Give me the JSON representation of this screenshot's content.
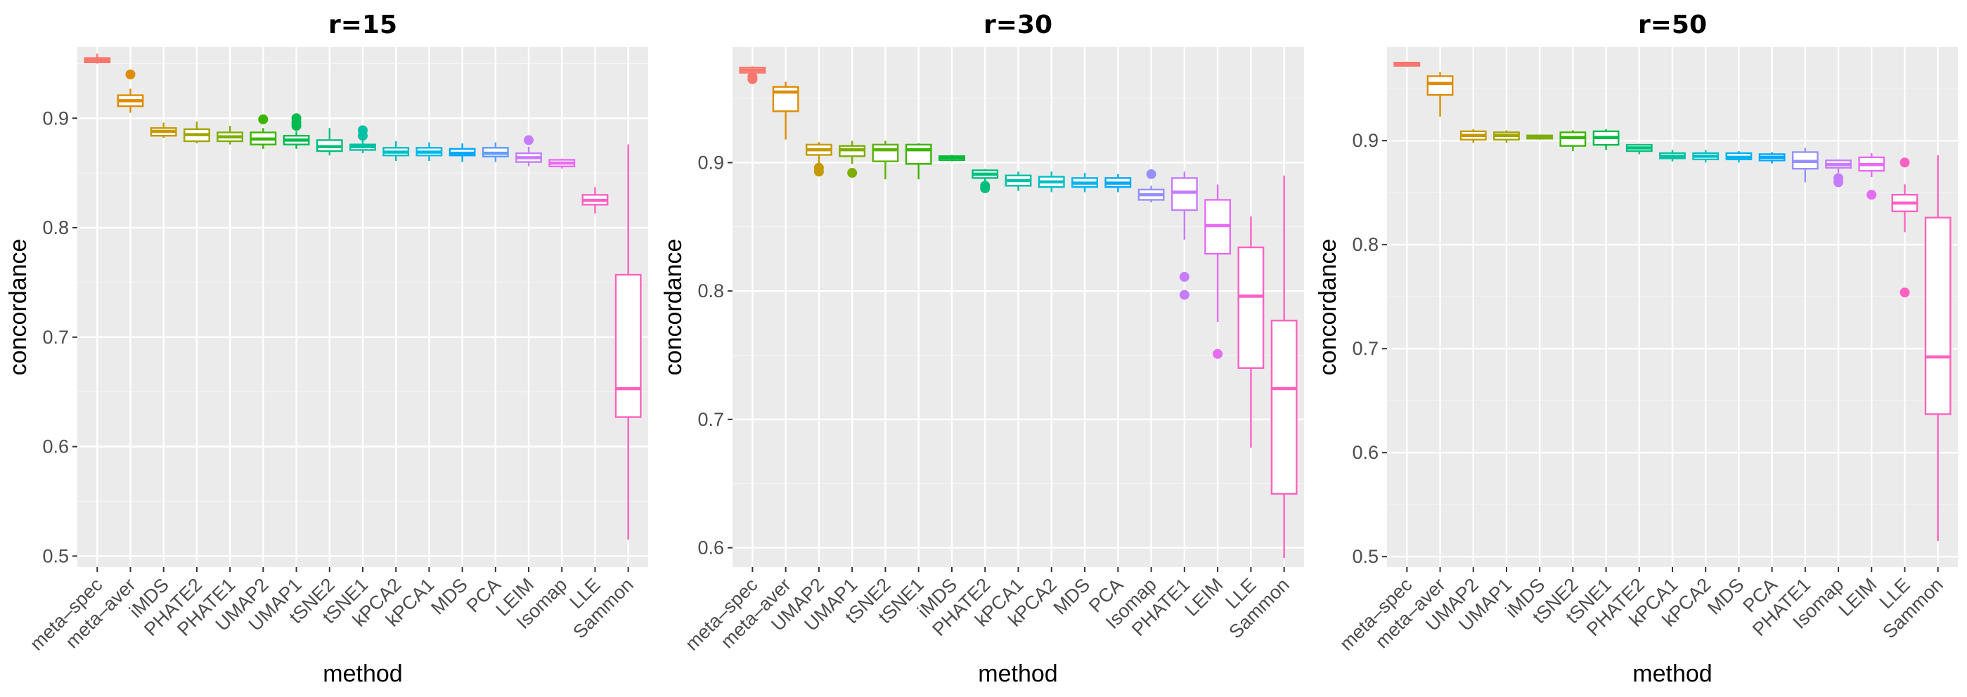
{
  "chart_data": [
    {
      "type": "box",
      "title": "r=15",
      "xlabel": "method",
      "ylabel": "concordance",
      "ylim": [
        0.49,
        0.965
      ],
      "yticks": [
        0.5,
        0.6,
        0.7,
        0.8,
        0.9
      ],
      "ytick_labels": [
        "0.5",
        "0.6",
        "0.7",
        "0.8",
        "0.9"
      ],
      "grid": true,
      "series": [
        {
          "name": "meta–spec",
          "color": "#F8766D",
          "q1": 0.951,
          "median": 0.953,
          "q3": 0.955,
          "wlo": 0.95,
          "whi": 0.959,
          "outliers": []
        },
        {
          "name": "meta–aver",
          "color": "#DE8C00",
          "q1": 0.911,
          "median": 0.916,
          "q3": 0.921,
          "wlo": 0.905,
          "whi": 0.927,
          "outliers": [
            0.94
          ]
        },
        {
          "name": "iMDS",
          "color": "#C59900",
          "q1": 0.884,
          "median": 0.888,
          "q3": 0.891,
          "wlo": 0.882,
          "whi": 0.896,
          "outliers": []
        },
        {
          "name": "PHATE2",
          "color": "#A3A500",
          "q1": 0.879,
          "median": 0.885,
          "q3": 0.89,
          "wlo": 0.877,
          "whi": 0.897,
          "outliers": []
        },
        {
          "name": "PHATE1",
          "color": "#7CAE00",
          "q1": 0.879,
          "median": 0.883,
          "q3": 0.887,
          "wlo": 0.876,
          "whi": 0.893,
          "outliers": []
        },
        {
          "name": "UMAP2",
          "color": "#39B600",
          "q1": 0.876,
          "median": 0.881,
          "q3": 0.887,
          "wlo": 0.872,
          "whi": 0.891,
          "outliers": [
            0.899
          ]
        },
        {
          "name": "UMAP1",
          "color": "#00BB4E",
          "q1": 0.876,
          "median": 0.88,
          "q3": 0.884,
          "wlo": 0.872,
          "whi": 0.888,
          "outliers": [
            0.893,
            0.896,
            0.9
          ]
        },
        {
          "name": "tSNE2",
          "color": "#00BF7D",
          "q1": 0.87,
          "median": 0.874,
          "q3": 0.88,
          "wlo": 0.866,
          "whi": 0.891,
          "outliers": []
        },
        {
          "name": "tSNE1",
          "color": "#00C1A3",
          "q1": 0.871,
          "median": 0.874,
          "q3": 0.876,
          "wlo": 0.868,
          "whi": 0.88,
          "outliers": [
            0.884,
            0.889
          ]
        },
        {
          "name": "kPCA2",
          "color": "#00BFC4",
          "q1": 0.866,
          "median": 0.869,
          "q3": 0.873,
          "wlo": 0.861,
          "whi": 0.879,
          "outliers": []
        },
        {
          "name": "kPCA1",
          "color": "#00B8E7",
          "q1": 0.866,
          "median": 0.869,
          "q3": 0.873,
          "wlo": 0.861,
          "whi": 0.878,
          "outliers": []
        },
        {
          "name": "MDS",
          "color": "#00A9FF",
          "q1": 0.866,
          "median": 0.868,
          "q3": 0.872,
          "wlo": 0.86,
          "whi": 0.877,
          "outliers": []
        },
        {
          "name": "PCA",
          "color": "#619CFF",
          "q1": 0.865,
          "median": 0.868,
          "q3": 0.873,
          "wlo": 0.86,
          "whi": 0.878,
          "outliers": []
        },
        {
          "name": "LEIM",
          "color": "#C77CFF",
          "q1": 0.86,
          "median": 0.864,
          "q3": 0.868,
          "wlo": 0.856,
          "whi": 0.874,
          "outliers": [
            0.88
          ]
        },
        {
          "name": "Isomap",
          "color": "#E76BF3",
          "q1": 0.856,
          "median": 0.859,
          "q3": 0.862,
          "wlo": 0.854,
          "whi": 0.863,
          "outliers": []
        },
        {
          "name": "LLE",
          "color": "#FF61C3",
          "q1": 0.821,
          "median": 0.825,
          "q3": 0.83,
          "wlo": 0.813,
          "whi": 0.837,
          "outliers": []
        },
        {
          "name": "Sammon",
          "color": "#FF62BC",
          "q1": 0.627,
          "median": 0.653,
          "q3": 0.757,
          "wlo": 0.515,
          "whi": 0.876,
          "outliers": []
        }
      ]
    },
    {
      "type": "box",
      "title": "r=30",
      "xlabel": "method",
      "ylabel": "concordance",
      "ylim": [
        0.585,
        0.99
      ],
      "yticks": [
        0.6,
        0.7,
        0.8,
        0.9
      ],
      "ytick_labels": [
        "0.6",
        "0.7",
        "0.8",
        "0.9"
      ],
      "grid": true,
      "series": [
        {
          "name": "meta–spec",
          "color": "#F8766D",
          "q1": 0.97,
          "median": 0.972,
          "q3": 0.974,
          "wlo": 0.968,
          "whi": 0.975,
          "outliers": [
            0.965,
            0.967
          ]
        },
        {
          "name": "meta–aver",
          "color": "#DE8C00",
          "q1": 0.94,
          "median": 0.955,
          "q3": 0.959,
          "wlo": 0.918,
          "whi": 0.963,
          "outliers": []
        },
        {
          "name": "UMAP2",
          "color": "#C59900",
          "q1": 0.906,
          "median": 0.91,
          "q3": 0.914,
          "wlo": 0.899,
          "whi": 0.916,
          "outliers": [
            0.893,
            0.896
          ]
        },
        {
          "name": "UMAP1",
          "color": "#7CAE00",
          "q1": 0.905,
          "median": 0.91,
          "q3": 0.913,
          "wlo": 0.899,
          "whi": 0.917,
          "outliers": [
            0.892
          ]
        },
        {
          "name": "tSNE2",
          "color": "#5BB300",
          "q1": 0.901,
          "median": 0.91,
          "q3": 0.914,
          "wlo": 0.887,
          "whi": 0.917,
          "outliers": []
        },
        {
          "name": "tSNE1",
          "color": "#39B600",
          "q1": 0.899,
          "median": 0.91,
          "q3": 0.914,
          "wlo": 0.887,
          "whi": 0.915,
          "outliers": []
        },
        {
          "name": "iMDS",
          "color": "#00BA38",
          "q1": 0.902,
          "median": 0.904,
          "q3": 0.905,
          "wlo": 0.901,
          "whi": 0.906,
          "outliers": []
        },
        {
          "name": "PHATE2",
          "color": "#00BF7D",
          "q1": 0.888,
          "median": 0.891,
          "q3": 0.894,
          "wlo": 0.885,
          "whi": 0.895,
          "outliers": [
            0.88,
            0.882
          ]
        },
        {
          "name": "kPCA1",
          "color": "#00C1A3",
          "q1": 0.882,
          "median": 0.886,
          "q3": 0.89,
          "wlo": 0.878,
          "whi": 0.893,
          "outliers": []
        },
        {
          "name": "kPCA2",
          "color": "#00BFC4",
          "q1": 0.881,
          "median": 0.885,
          "q3": 0.889,
          "wlo": 0.877,
          "whi": 0.893,
          "outliers": []
        },
        {
          "name": "MDS",
          "color": "#00B4F0",
          "q1": 0.881,
          "median": 0.884,
          "q3": 0.888,
          "wlo": 0.877,
          "whi": 0.892,
          "outliers": []
        },
        {
          "name": "PCA",
          "color": "#00A9FF",
          "q1": 0.881,
          "median": 0.884,
          "q3": 0.888,
          "wlo": 0.877,
          "whi": 0.891,
          "outliers": []
        },
        {
          "name": "Isomap",
          "color": "#9590FF",
          "q1": 0.871,
          "median": 0.875,
          "q3": 0.879,
          "wlo": 0.869,
          "whi": 0.882,
          "outliers": [
            0.891
          ]
        },
        {
          "name": "PHATE1",
          "color": "#C77CFF",
          "q1": 0.863,
          "median": 0.877,
          "q3": 0.888,
          "wlo": 0.84,
          "whi": 0.893,
          "outliers": [
            0.811,
            0.797
          ]
        },
        {
          "name": "LEIM",
          "color": "#E76BF3",
          "q1": 0.829,
          "median": 0.851,
          "q3": 0.871,
          "wlo": 0.776,
          "whi": 0.883,
          "outliers": [
            0.751
          ]
        },
        {
          "name": "LLE",
          "color": "#FF61C3",
          "q1": 0.74,
          "median": 0.796,
          "q3": 0.834,
          "wlo": 0.678,
          "whi": 0.858,
          "outliers": []
        },
        {
          "name": "Sammon",
          "color": "#FF62BC",
          "q1": 0.642,
          "median": 0.724,
          "q3": 0.777,
          "wlo": 0.592,
          "whi": 0.89,
          "outliers": []
        }
      ]
    },
    {
      "type": "box",
      "title": "r=50",
      "xlabel": "method",
      "ylabel": "concordance",
      "ylim": [
        0.49,
        0.99
      ],
      "yticks": [
        0.5,
        0.6,
        0.7,
        0.8,
        0.9
      ],
      "ytick_labels": [
        "0.5",
        "0.6",
        "0.7",
        "0.8",
        "0.9"
      ],
      "grid": true,
      "series": [
        {
          "name": "meta–spec",
          "color": "#F8766D",
          "q1": 0.972,
          "median": 0.973,
          "q3": 0.975,
          "wlo": 0.971,
          "whi": 0.976,
          "outliers": []
        },
        {
          "name": "meta–aver",
          "color": "#DE8C00",
          "q1": 0.944,
          "median": 0.955,
          "q3": 0.962,
          "wlo": 0.923,
          "whi": 0.966,
          "outliers": []
        },
        {
          "name": "UMAP2",
          "color": "#C59900",
          "q1": 0.901,
          "median": 0.905,
          "q3": 0.909,
          "wlo": 0.898,
          "whi": 0.911,
          "outliers": []
        },
        {
          "name": "UMAP1",
          "color": "#A3A500",
          "q1": 0.901,
          "median": 0.905,
          "q3": 0.908,
          "wlo": 0.898,
          "whi": 0.91,
          "outliers": []
        },
        {
          "name": "iMDS",
          "color": "#7CAE00",
          "q1": 0.902,
          "median": 0.903,
          "q3": 0.905,
          "wlo": 0.901,
          "whi": 0.906,
          "outliers": []
        },
        {
          "name": "tSNE2",
          "color": "#39B600",
          "q1": 0.895,
          "median": 0.903,
          "q3": 0.908,
          "wlo": 0.89,
          "whi": 0.91,
          "outliers": []
        },
        {
          "name": "tSNE1",
          "color": "#00BB4E",
          "q1": 0.896,
          "median": 0.903,
          "q3": 0.909,
          "wlo": 0.891,
          "whi": 0.911,
          "outliers": []
        },
        {
          "name": "PHATE2",
          "color": "#00BF7D",
          "q1": 0.89,
          "median": 0.893,
          "q3": 0.896,
          "wlo": 0.887,
          "whi": 0.897,
          "outliers": []
        },
        {
          "name": "kPCA1",
          "color": "#00C1A3",
          "q1": 0.883,
          "median": 0.885,
          "q3": 0.888,
          "wlo": 0.88,
          "whi": 0.891,
          "outliers": []
        },
        {
          "name": "kPCA2",
          "color": "#00BFC4",
          "q1": 0.882,
          "median": 0.885,
          "q3": 0.888,
          "wlo": 0.879,
          "whi": 0.891,
          "outliers": []
        },
        {
          "name": "MDS",
          "color": "#00B4F0",
          "q1": 0.882,
          "median": 0.884,
          "q3": 0.888,
          "wlo": 0.879,
          "whi": 0.89,
          "outliers": []
        },
        {
          "name": "PCA",
          "color": "#00A9FF",
          "q1": 0.881,
          "median": 0.884,
          "q3": 0.887,
          "wlo": 0.878,
          "whi": 0.889,
          "outliers": []
        },
        {
          "name": "PHATE1",
          "color": "#9590FF",
          "q1": 0.873,
          "median": 0.88,
          "q3": 0.889,
          "wlo": 0.86,
          "whi": 0.893,
          "outliers": []
        },
        {
          "name": "Isomap",
          "color": "#C77CFF",
          "q1": 0.874,
          "median": 0.877,
          "q3": 0.881,
          "wlo": 0.869,
          "whi": 0.882,
          "outliers": [
            0.86,
            0.864
          ]
        },
        {
          "name": "LEIM",
          "color": "#E76BF3",
          "q1": 0.871,
          "median": 0.877,
          "q3": 0.884,
          "wlo": 0.865,
          "whi": 0.888,
          "outliers": [
            0.848
          ]
        },
        {
          "name": "LLE",
          "color": "#FF61C3",
          "q1": 0.832,
          "median": 0.84,
          "q3": 0.848,
          "wlo": 0.812,
          "whi": 0.858,
          "outliers": [
            0.879,
            0.754
          ]
        },
        {
          "name": "Sammon",
          "color": "#FF62BC",
          "q1": 0.637,
          "median": 0.692,
          "q3": 0.826,
          "wlo": 0.515,
          "whi": 0.886,
          "outliers": []
        }
      ]
    }
  ]
}
